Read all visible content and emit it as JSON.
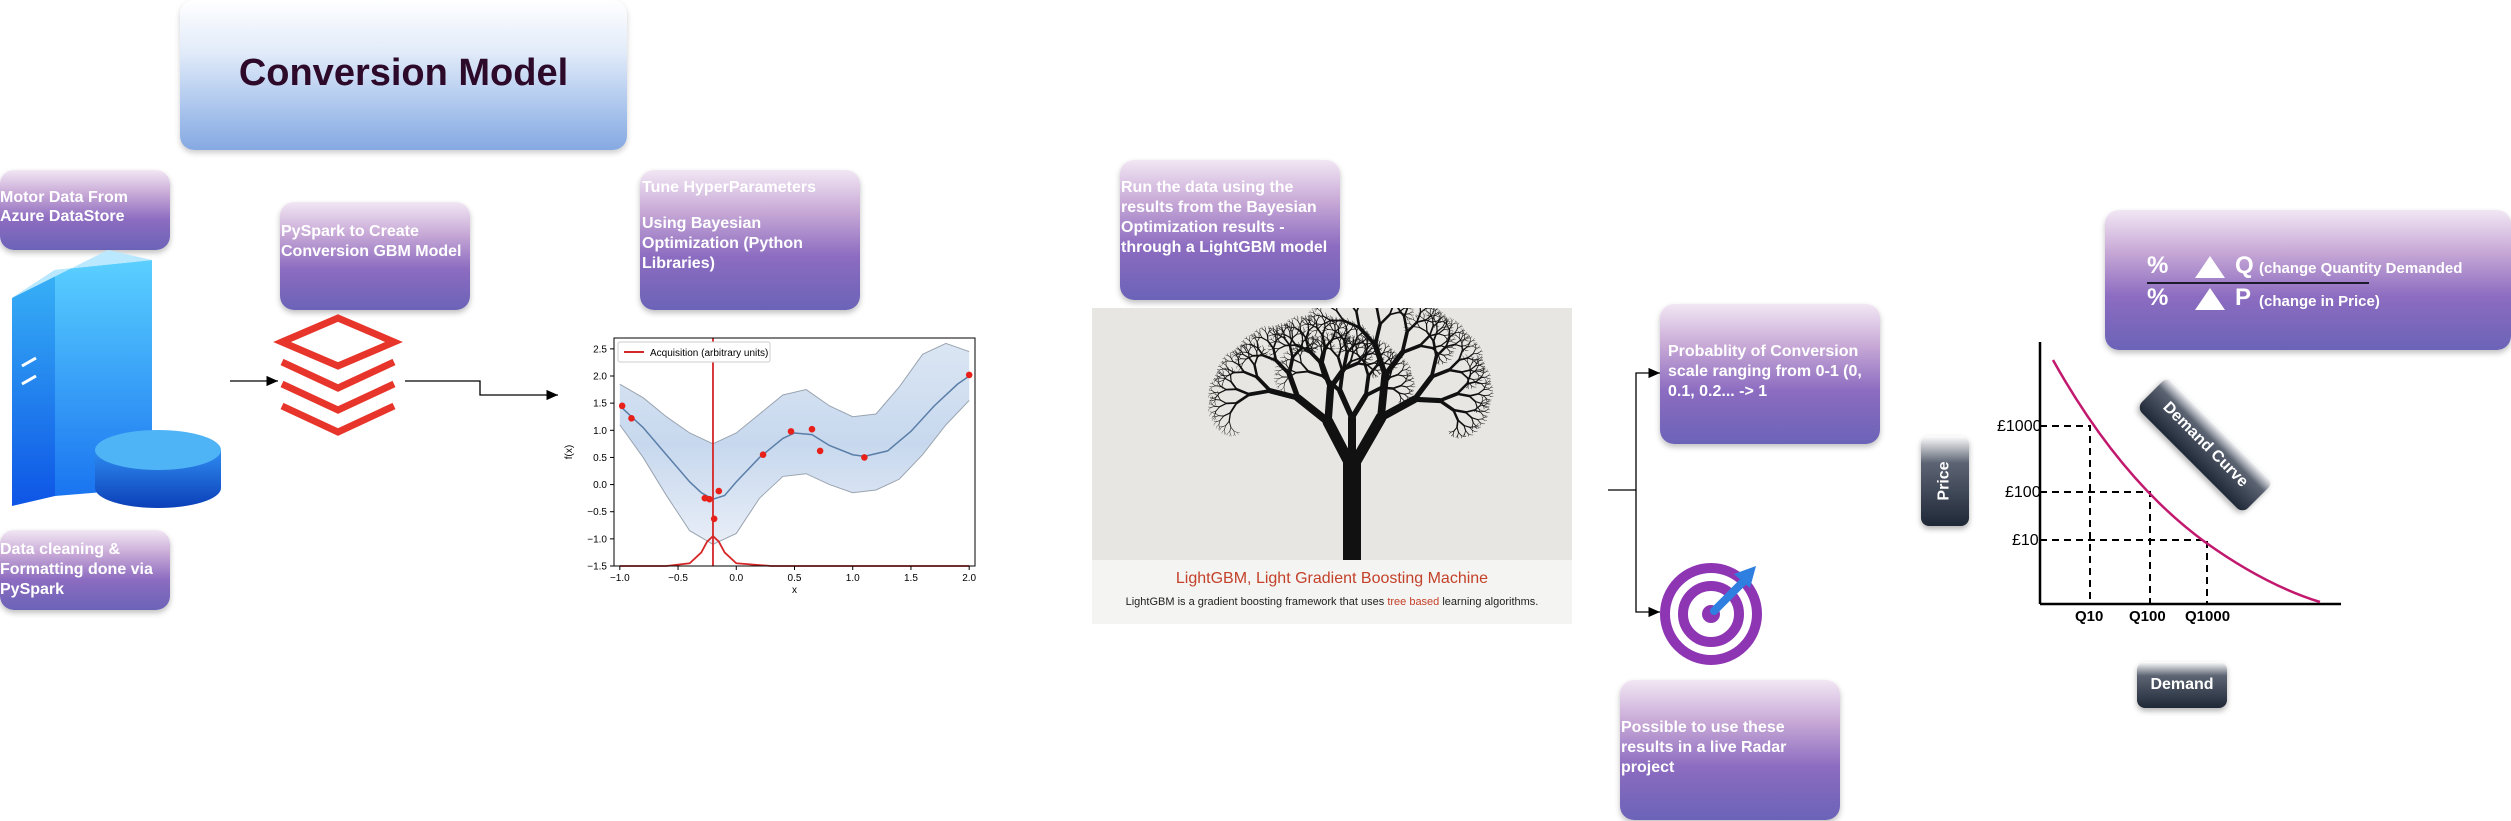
{
  "title": "Conversion Model",
  "steps": {
    "motor_data": "Motor Data From Azure DataStore",
    "data_cleaning": "Data cleaning & Formatting done via PySpark",
    "pyspark": "PySpark to Create Conversion GBM Model",
    "tune_title": "Tune HyperParameters",
    "tune_body": "Using Bayesian Optimization (Python Libraries)",
    "run_data": "Run the data using the results from the Bayesian Optimization results - through a LightGBM model",
    "probability": "Probablity of Conversion scale ranging from 0-1 (0, 0.1, 0.2... -> 1",
    "radar": "Possible to use these results in a live Radar project"
  },
  "lightgbm": {
    "caption_title": "LightGBM, Light Gradient Boosting Machine",
    "caption_pre": "LightGBM is a gradient boosting framework that uses ",
    "caption_link": "tree based",
    "caption_post": " learning algorithms."
  },
  "elasticity": {
    "pct1": "%",
    "pct2": "%",
    "q_letter": "Q",
    "p_letter": "P",
    "q_text": "(change Quantity Demanded",
    "p_text": "(change in Price)"
  },
  "demand_chart": {
    "price_label": "Price",
    "demand_label": "Demand",
    "curve_label": "Demand Curve",
    "price_ticks": [
      "£1000",
      "£100",
      "£10"
    ],
    "quantity_ticks": [
      "Q10",
      "Q100",
      "Q1000"
    ]
  },
  "chart_data": {
    "type": "line",
    "title": "",
    "xlabel": "x",
    "ylabel": "f(x)",
    "xlim": [
      -1.05,
      2.05
    ],
    "ylim": [
      -1.5,
      2.7
    ],
    "xticks": [
      "−1.0",
      "−0.5",
      "0.0",
      "0.5",
      "1.0",
      "1.5",
      "2.0"
    ],
    "yticks": [
      "2.5",
      "2.0",
      "1.5",
      "1.0",
      "0.5",
      "0.0",
      "−0.5",
      "−1.0",
      "−1.5"
    ],
    "grid": false,
    "legend_position": "top-left",
    "series": [
      {
        "name": "",
        "kind": "mean",
        "color": "#5a7ea8",
        "x": [
          -1.0,
          -0.8,
          -0.6,
          -0.4,
          -0.3,
          -0.2,
          -0.1,
          0.0,
          0.2,
          0.4,
          0.5,
          0.65,
          0.8,
          1.0,
          1.1,
          1.3,
          1.5,
          1.7,
          1.9,
          2.0
        ],
        "y": [
          1.45,
          1.05,
          0.55,
          0.05,
          -0.15,
          -0.27,
          -0.2,
          0.05,
          0.5,
          0.85,
          0.95,
          0.92,
          0.72,
          0.55,
          0.52,
          0.62,
          0.98,
          1.45,
          1.85,
          2.0
        ]
      },
      {
        "name": "",
        "kind": "upper_band",
        "color": "#9aa4b0",
        "x": [
          -1.0,
          -0.8,
          -0.6,
          -0.4,
          -0.2,
          0.0,
          0.2,
          0.4,
          0.6,
          0.8,
          1.0,
          1.2,
          1.4,
          1.6,
          1.8,
          2.0
        ],
        "y": [
          1.85,
          1.6,
          1.25,
          0.95,
          0.75,
          0.95,
          1.3,
          1.65,
          1.75,
          1.45,
          1.25,
          1.3,
          1.8,
          2.4,
          2.6,
          2.45
        ]
      },
      {
        "name": "",
        "kind": "lower_band",
        "color": "#9aa4b0",
        "x": [
          -1.0,
          -0.8,
          -0.6,
          -0.4,
          -0.2,
          0.0,
          0.2,
          0.4,
          0.6,
          0.8,
          1.0,
          1.2,
          1.4,
          1.6,
          1.8,
          2.0
        ],
        "y": [
          1.1,
          0.5,
          -0.2,
          -0.85,
          -1.1,
          -0.9,
          -0.25,
          0.15,
          0.2,
          0.0,
          -0.15,
          -0.1,
          0.1,
          0.55,
          1.1,
          1.55
        ]
      },
      {
        "name": "",
        "kind": "observations",
        "color": "#e8201a",
        "x": [
          -0.98,
          -0.9,
          -0.27,
          -0.23,
          -0.19,
          -0.15,
          0.23,
          0.47,
          0.65,
          0.72,
          1.1,
          2.0
        ],
        "y": [
          1.45,
          1.22,
          -0.25,
          -0.27,
          -0.63,
          -0.12,
          0.55,
          0.98,
          1.02,
          0.62,
          0.5,
          2.02
        ]
      },
      {
        "name": "Acquisition (arbitrary units)",
        "kind": "acquisition",
        "color": "#d62728",
        "x": [
          -1.0,
          -0.6,
          -0.4,
          -0.3,
          -0.25,
          -0.2,
          -0.15,
          -0.1,
          0.0,
          0.3,
          2.0
        ],
        "y": [
          -1.5,
          -1.5,
          -1.45,
          -1.25,
          -1.05,
          -0.95,
          -1.05,
          -1.25,
          -1.45,
          -1.5,
          -1.5
        ]
      }
    ],
    "vertical_line_x": -0.2
  }
}
